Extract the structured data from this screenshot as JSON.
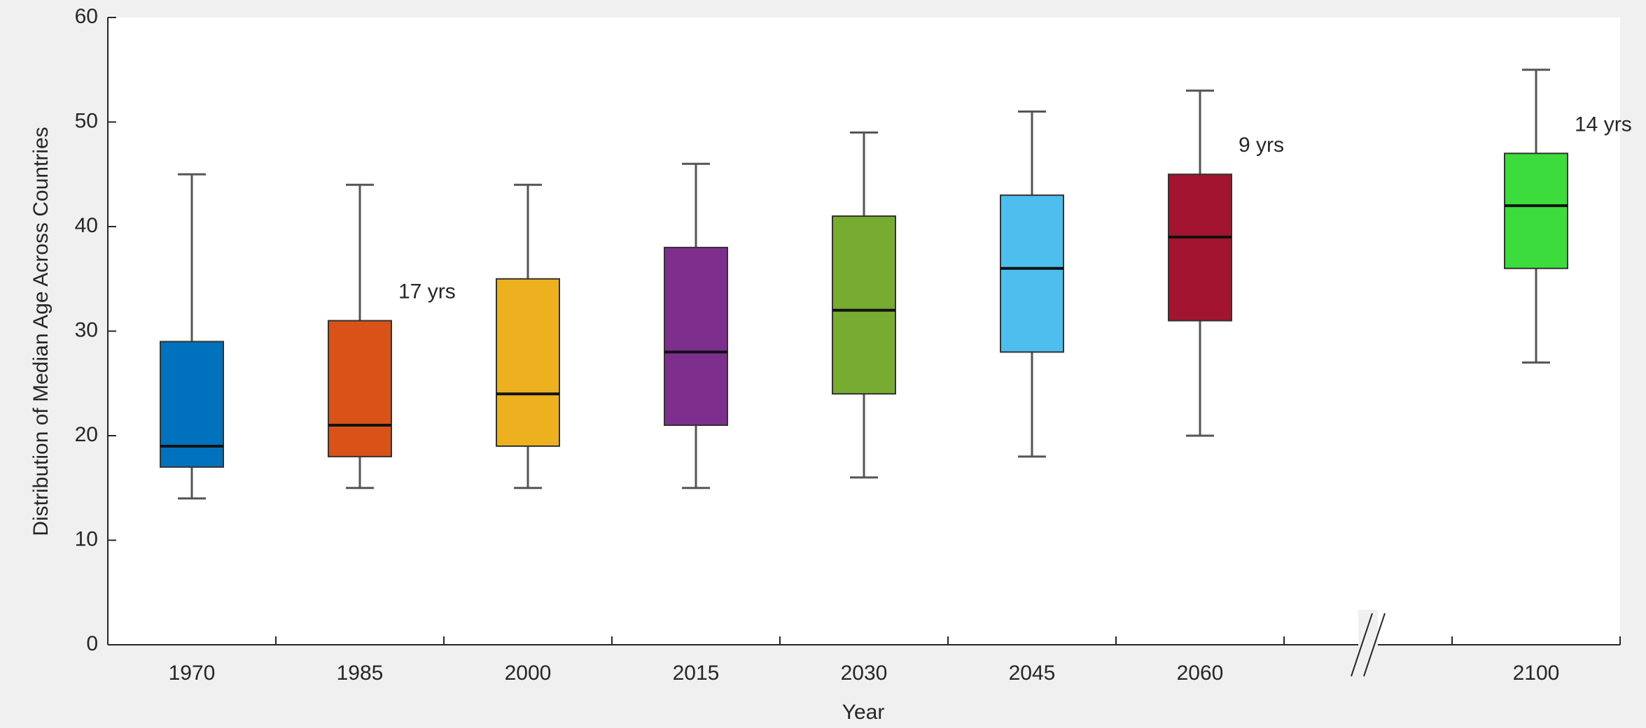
{
  "chart_data": {
    "type": "box",
    "ylabel": "Distribution of Median Age Across Countries",
    "xlabel": "Year",
    "categories": [
      "1970",
      "1985",
      "2000",
      "2015",
      "2030",
      "2045",
      "2060",
      null,
      "2100"
    ],
    "min": [
      14,
      15,
      15,
      15,
      16,
      18,
      20,
      null,
      27
    ],
    "q1": [
      17,
      18,
      19,
      21,
      24,
      28,
      31,
      null,
      36
    ],
    "median": [
      19,
      21,
      24,
      28,
      32,
      36,
      39,
      null,
      42
    ],
    "q3": [
      29,
      31,
      35,
      38,
      41,
      43,
      45,
      null,
      47
    ],
    "max": [
      45,
      44,
      44,
      46,
      49,
      51,
      53,
      null,
      55
    ],
    "colors": [
      "#0072bd",
      "#d95319",
      "#edb120",
      "#7e2f8e",
      "#77ac30",
      "#4dbeee",
      "#a2142f",
      null,
      "#3ddc3d"
    ],
    "ylim": [
      0,
      60
    ],
    "yticks": [
      0,
      10,
      20,
      30,
      40,
      50,
      60
    ],
    "axis_break": true,
    "annotations": [
      {
        "text": "17 yrs",
        "category": "1985"
      },
      {
        "text": "9 yrs",
        "category": "2060"
      },
      {
        "text": "14 yrs",
        "category": "2100"
      }
    ]
  }
}
